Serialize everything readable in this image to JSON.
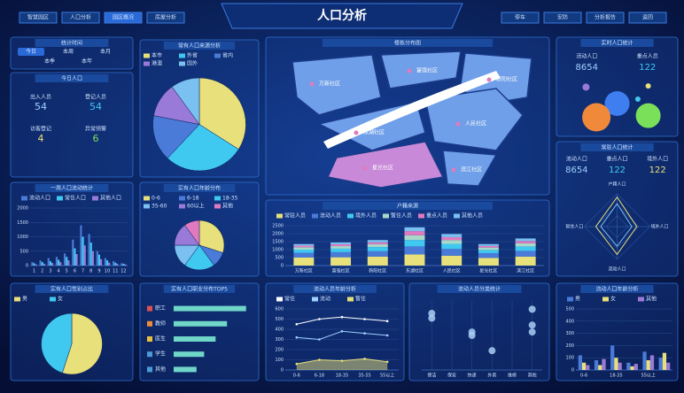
{
  "header": {
    "title": "人口分析",
    "nav_left": [
      "智慧园区",
      "人口分析",
      "园区概况",
      "房屋分析"
    ],
    "nav_right": [
      "停车",
      "安防",
      "分析报告",
      "返回"
    ]
  },
  "time_panel": {
    "title": "统计时间",
    "options": [
      "今日",
      "本周",
      "本月",
      "本季",
      "本年"
    ]
  },
  "stats_panel": {
    "title": "今日人口",
    "items": [
      {
        "label": "出入人员",
        "value": 54
      },
      {
        "label": "登记人员",
        "value": 54
      },
      {
        "label": "访客登记",
        "value": 4
      },
      {
        "label": "异常预警",
        "value": 6
      }
    ]
  },
  "map": {
    "title": "楼栋分布图",
    "labels": [
      "万新社区",
      "富强社区",
      "新阳社区",
      "东湖社区",
      "人民社区",
      "星光社区",
      "滨江社区"
    ]
  },
  "chart_data": [
    {
      "type": "pie",
      "title": "常有人口来源分析",
      "categories": [
        "本市",
        "外省",
        "省内",
        "港澳",
        "国外"
      ],
      "values": [
        34,
        28,
        16,
        12,
        10
      ],
      "colors": [
        "#e8e07a",
        "#3fc8f0",
        "#4a7bd8",
        "#9a7ad8",
        "#7ac0f0"
      ]
    },
    {
      "type": "bar",
      "title": "一周人口流动统计",
      "categories": [
        "1",
        "2",
        "3",
        "4",
        "5",
        "6",
        "7",
        "8",
        "9",
        "10",
        "11",
        "12"
      ],
      "series": [
        {
          "name": "流动人口",
          "color": "#4a7bd8",
          "values": [
            120,
            180,
            260,
            300,
            420,
            900,
            1400,
            1100,
            500,
            260,
            150,
            80
          ]
        },
        {
          "name": "常住人口",
          "color": "#3fc8f0",
          "values": [
            80,
            120,
            150,
            200,
            300,
            600,
            1000,
            800,
            380,
            180,
            100,
            60
          ]
        },
        {
          "name": "其他人口",
          "color": "#9a7ad8",
          "values": [
            40,
            60,
            90,
            120,
            180,
            400,
            700,
            500,
            220,
            100,
            60,
            40
          ]
        }
      ],
      "ylim": [
        0,
        2000
      ],
      "yticks": [
        0,
        500,
        1000,
        1500,
        2000
      ],
      "grid": true
    },
    {
      "type": "pie",
      "title": "实有人口年龄分布",
      "categories": [
        "0-6",
        "6-18",
        "18-35",
        "35-60",
        "60以上",
        "其他"
      ],
      "values": [
        30,
        10,
        20,
        15,
        15,
        10
      ],
      "colors": [
        "#e8e07a",
        "#4a7bd8",
        "#3fc8f0",
        "#7ac0f0",
        "#9a7ad8",
        "#e07ac0"
      ]
    },
    {
      "type": "bar",
      "stacked": true,
      "title": "户籍来源",
      "categories": [
        "万新社区",
        "富强社区",
        "新阳社区",
        "东湖社区",
        "人民社区",
        "星光社区",
        "滨江社区"
      ],
      "series": [
        {
          "name": "常驻人员",
          "color": "#e8e07a",
          "values": [
            500,
            520,
            560,
            700,
            620,
            480,
            560
          ]
        },
        {
          "name": "流动人员",
          "color": "#4a7bd8",
          "values": [
            300,
            320,
            340,
            500,
            420,
            300,
            360
          ]
        },
        {
          "name": "境外人员",
          "color": "#3fc8f0",
          "values": [
            200,
            220,
            260,
            400,
            320,
            200,
            280
          ]
        },
        {
          "name": "暂住人员",
          "color": "#a8d8c8",
          "values": [
            150,
            160,
            180,
            300,
            240,
            150,
            200
          ]
        },
        {
          "name": "重点人员",
          "color": "#e07ac0",
          "values": [
            100,
            110,
            120,
            260,
            180,
            100,
            140
          ]
        },
        {
          "name": "其他人员",
          "color": "#7ac0f0",
          "values": [
            100,
            120,
            140,
            240,
            200,
            120,
            160
          ]
        }
      ],
      "ylim": [
        0,
        2500
      ],
      "yticks": [
        0,
        500,
        1000,
        1500,
        2000,
        2500
      ],
      "grid": true
    },
    {
      "type": "pie",
      "title": "实有人口性别占比",
      "categories": [
        "男",
        "女"
      ],
      "values": [
        55,
        45
      ],
      "colors": [
        "#e8e07a",
        "#3fc8f0"
      ]
    },
    {
      "type": "hbar",
      "title": "实有人口职业分布TOP5",
      "categories": [
        "职工",
        "教师",
        "医生",
        "学生",
        "其他"
      ],
      "values": [
        95,
        70,
        55,
        40,
        30
      ],
      "xlim": [
        0,
        100
      ],
      "color": "#6fd6c8",
      "rank_colors": [
        "#e05050",
        "#f08a3a",
        "#e8c040",
        "#4a9bd8",
        "#4a9bd8"
      ]
    },
    {
      "type": "line",
      "title": "流动人员年龄分析",
      "categories": [
        "0-6",
        "6-18",
        "18-35",
        "35-55",
        "55以上"
      ],
      "series": [
        {
          "name": "常住",
          "color": "#ffffff",
          "values": [
            450,
            500,
            520,
            500,
            480
          ]
        },
        {
          "name": "流动",
          "color": "#9fd0ff",
          "values": [
            320,
            300,
            380,
            360,
            340
          ]
        },
        {
          "name": "暂住",
          "color": "#e8e07a",
          "values": [
            60,
            100,
            90,
            110,
            80
          ],
          "area": true
        }
      ],
      "ylim": [
        0,
        600
      ],
      "yticks": [
        0,
        100,
        200,
        300,
        400,
        500,
        600
      ],
      "grid": true
    },
    {
      "type": "scatter",
      "title": "流动人员分类统计",
      "categories": [
        "保洁",
        "保安",
        "快递",
        "外卖",
        "维修",
        "其他"
      ],
      "series": [
        {
          "color": "#a8cef5",
          "values": [
            82,
            null,
            55,
            28,
            null,
            88
          ]
        },
        {
          "color": "#a8cef5",
          "values": [
            75,
            null,
            50,
            null,
            null,
            65
          ]
        },
        {
          "color": "#a8cef5",
          "values": [
            null,
            null,
            null,
            null,
            null,
            55
          ]
        }
      ],
      "ylim": [
        0,
        100
      ]
    },
    {
      "type": "bar",
      "title": "流动人口年龄分析",
      "categories": [
        "0-6",
        null,
        "18-35",
        null,
        "55以上",
        null
      ],
      "series": [
        {
          "name": "男",
          "color": "#4a7bd8",
          "values": [
            120,
            80,
            200,
            60,
            150,
            100
          ]
        },
        {
          "name": "女",
          "color": "#e8e07a",
          "values": [
            60,
            40,
            100,
            30,
            80,
            140
          ]
        },
        {
          "name": "其他",
          "color": "#9a7ad8",
          "values": [
            40,
            90,
            60,
            50,
            120,
            60
          ]
        }
      ],
      "ylim": [
        0,
        500
      ],
      "yticks": [
        0,
        100,
        200,
        300,
        400,
        500
      ],
      "grid": true
    },
    {
      "type": "radar",
      "title": "常驻人口统计",
      "stats": [
        {
          "label": "流动人口",
          "value": 8654
        },
        {
          "label": "重点人口",
          "value": 122
        },
        {
          "label": "境外人口",
          "value": 122
        }
      ],
      "categories": [
        "户籍人口",
        "境外人口",
        "流动人口",
        "暂住人口"
      ],
      "series": [
        {
          "color": "#e8e07a",
          "values": [
            90,
            60,
            85,
            65
          ]
        },
        {
          "color": "#7ac0f0",
          "values": [
            70,
            45,
            60,
            50
          ]
        }
      ],
      "ylim": [
        0,
        100
      ]
    },
    {
      "type": "bubble",
      "title": "实时人口统计",
      "stats": [
        {
          "label": "活动人口",
          "value": 8654
        },
        {
          "label": "重点人员",
          "value": 122
        }
      ],
      "x": [
        20,
        80,
        50,
        30,
        80,
        70
      ],
      "y": [
        80,
        82,
        50,
        25,
        28,
        58
      ],
      "size": [
        4,
        3,
        14,
        16,
        14,
        3
      ],
      "colors": [
        "#9a7ad8",
        "#e8e07a",
        "#3f7ef0",
        "#f08a3a",
        "#7ae05a",
        "#3fc8f0"
      ],
      "xlim": [
        0,
        100
      ],
      "ylim": [
        0,
        100
      ]
    }
  ]
}
